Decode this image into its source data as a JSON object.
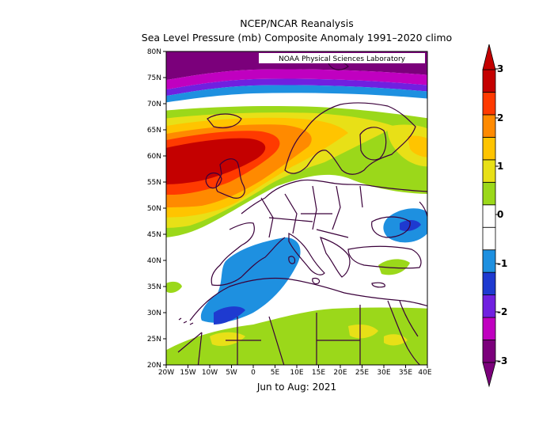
{
  "title_line1": "NCEP/NCAR Reanalysis",
  "title_line2": "Sea Level Pressure (mb) Composite Anomaly 1991–2020 climo",
  "credit": "NOAA Physical Sciences Laboratory",
  "period": "Jun to Aug: 2021",
  "map": {
    "lon_range": [
      -20,
      40
    ],
    "lat_range": [
      20,
      80
    ],
    "lon_ticks": [
      "20W",
      "15W",
      "10W",
      "5W",
      "0",
      "5E",
      "10E",
      "15E",
      "20E",
      "25E",
      "30E",
      "35E",
      "40E"
    ],
    "lat_ticks": [
      "80N",
      "75N",
      "70N",
      "65N",
      "60N",
      "55N",
      "50N",
      "45N",
      "40N",
      "35N",
      "30N",
      "25N",
      "20N"
    ]
  },
  "colorbar": {
    "labels": [
      "3",
      "2",
      "1",
      "0",
      "-1",
      "-2",
      "-3"
    ],
    "colors": [
      "#7b007b",
      "#c000c0",
      "#7020e0",
      "#1e3ad0",
      "#1e90e0",
      "#ffffff",
      "#ffffff",
      "#9bd81a",
      "#e8e017",
      "#ffc400",
      "#ff8a00",
      "#ff3a00",
      "#c40000"
    ]
  }
}
